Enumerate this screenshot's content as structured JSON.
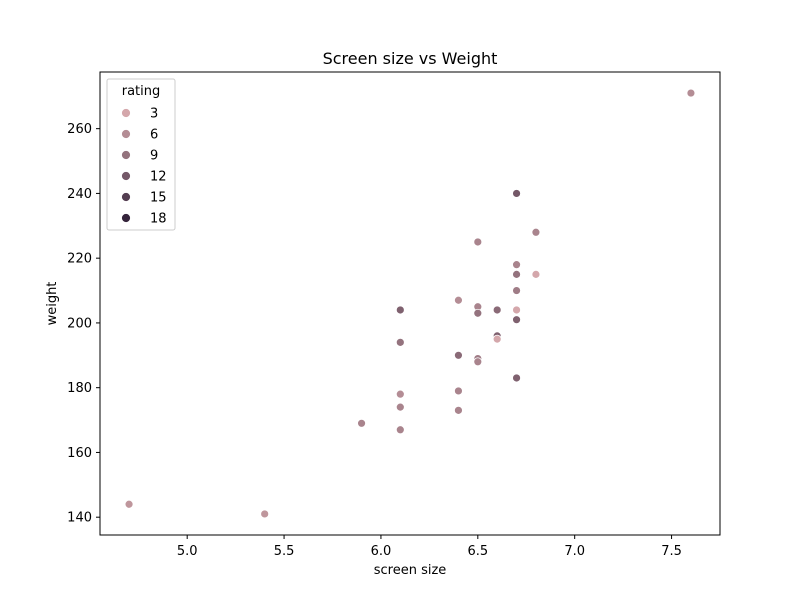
{
  "chart_data": {
    "type": "scatter",
    "title": "Screen size vs Weight",
    "xlabel": "screen size",
    "ylabel": "weight",
    "xlim": [
      4.55,
      7.75
    ],
    "ylim": [
      134.5,
      277.5
    ],
    "xticks": [
      5.0,
      5.5,
      6.0,
      6.5,
      7.0,
      7.5
    ],
    "yticks": [
      140,
      160,
      180,
      200,
      220,
      240,
      260
    ],
    "grid": false,
    "hue_variable": "rating",
    "hue_range": [
      1,
      19
    ],
    "hue_colors": {
      "low": "#e9b9ba",
      "high": "#2a1b33"
    },
    "legend": {
      "title": "rating",
      "placement": "top-left",
      "entries": [
        3,
        6,
        9,
        12,
        15,
        18
      ]
    },
    "points": [
      {
        "x": 4.7,
        "y": 144,
        "rating": 5
      },
      {
        "x": 5.4,
        "y": 141,
        "rating": 5
      },
      {
        "x": 5.9,
        "y": 169,
        "rating": 7
      },
      {
        "x": 6.1,
        "y": 204,
        "rating": 11
      },
      {
        "x": 6.1,
        "y": 194,
        "rating": 9
      },
      {
        "x": 6.1,
        "y": 178,
        "rating": 6
      },
      {
        "x": 6.1,
        "y": 174,
        "rating": 7
      },
      {
        "x": 6.1,
        "y": 167,
        "rating": 7
      },
      {
        "x": 6.4,
        "y": 207,
        "rating": 6
      },
      {
        "x": 6.4,
        "y": 190,
        "rating": 10
      },
      {
        "x": 6.4,
        "y": 179,
        "rating": 7
      },
      {
        "x": 6.4,
        "y": 173,
        "rating": 7
      },
      {
        "x": 6.5,
        "y": 225,
        "rating": 7
      },
      {
        "x": 6.5,
        "y": 205,
        "rating": 7
      },
      {
        "x": 6.5,
        "y": 203,
        "rating": 9
      },
      {
        "x": 6.5,
        "y": 189,
        "rating": 8
      },
      {
        "x": 6.5,
        "y": 188,
        "rating": 7
      },
      {
        "x": 6.6,
        "y": 204,
        "rating": 10
      },
      {
        "x": 6.6,
        "y": 196,
        "rating": 11
      },
      {
        "x": 6.6,
        "y": 195,
        "rating": 3
      },
      {
        "x": 6.7,
        "y": 240,
        "rating": 12
      },
      {
        "x": 6.7,
        "y": 218,
        "rating": 7
      },
      {
        "x": 6.7,
        "y": 215,
        "rating": 9
      },
      {
        "x": 6.7,
        "y": 210,
        "rating": 8
      },
      {
        "x": 6.7,
        "y": 204,
        "rating": 3
      },
      {
        "x": 6.7,
        "y": 201,
        "rating": 11
      },
      {
        "x": 6.7,
        "y": 183,
        "rating": 11
      },
      {
        "x": 6.8,
        "y": 228,
        "rating": 7
      },
      {
        "x": 6.8,
        "y": 215,
        "rating": 3
      },
      {
        "x": 7.6,
        "y": 271,
        "rating": 6
      }
    ]
  }
}
